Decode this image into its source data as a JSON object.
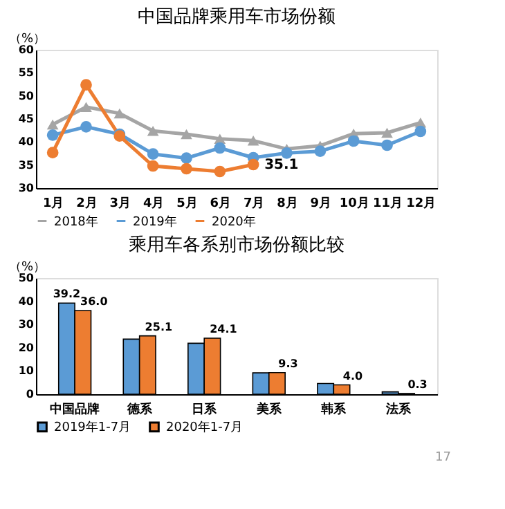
{
  "chart_data": [
    {
      "type": "line",
      "title": "中国品牌乘用车市场份额",
      "ylabel": "（%）",
      "categories": [
        "1月",
        "2月",
        "3月",
        "4月",
        "5月",
        "6月",
        "7月",
        "8月",
        "9月",
        "10月",
        "11月",
        "12月"
      ],
      "series": [
        {
          "name": "2018年",
          "color": "#a5a5a5",
          "marker": "triangle",
          "values": [
            43.8,
            47.6,
            46.2,
            42.4,
            41.7,
            40.7,
            40.3,
            38.5,
            39.2,
            41.8,
            42.0,
            44.2
          ]
        },
        {
          "name": "2019年",
          "color": "#5b9bd5",
          "values": [
            41.5,
            43.3,
            41.7,
            37.4,
            36.5,
            38.7,
            36.6,
            37.6,
            38.0,
            40.2,
            39.3,
            42.3
          ]
        },
        {
          "name": "2020年",
          "color": "#ed7d31",
          "values": [
            37.7,
            52.4,
            41.3,
            34.8,
            34.2,
            33.6,
            35.1,
            null,
            null,
            null,
            null,
            null
          ],
          "value_labels": [
            null,
            null,
            null,
            null,
            null,
            null,
            "35.1",
            null,
            null,
            null,
            null,
            null
          ]
        }
      ],
      "ylim": [
        30,
        60
      ],
      "yticks": [
        30,
        35,
        40,
        45,
        50,
        55,
        60
      ],
      "grid": false,
      "legend": "bottom",
      "marker": "circle",
      "line_style": "solid"
    },
    {
      "type": "bar",
      "title": "乘用车各系别市场份额比较",
      "ylabel": "（%）",
      "categories": [
        "中国品牌",
        "德系",
        "日系",
        "美系",
        "韩系",
        "法系"
      ],
      "series": [
        {
          "name": "2019年1-7月",
          "color": "#5b9bd5",
          "values": [
            39.2,
            23.7,
            21.9,
            9.2,
            4.6,
            1.0
          ],
          "value_labels": [
            "39.2",
            null,
            null,
            null,
            null,
            null
          ]
        },
        {
          "name": "2020年1-7月",
          "color": "#ed7d31",
          "values": [
            36.0,
            25.1,
            24.1,
            9.3,
            4.0,
            0.3
          ],
          "value_labels": [
            "36.0",
            "25.1",
            "24.1",
            "9.3",
            "4.0",
            "0.3"
          ]
        }
      ],
      "ylim": [
        0,
        50
      ],
      "yticks": [
        0,
        10,
        20,
        30,
        40,
        50
      ],
      "grid": false,
      "legend": "bottom",
      "annotations": [
        "17"
      ]
    }
  ]
}
